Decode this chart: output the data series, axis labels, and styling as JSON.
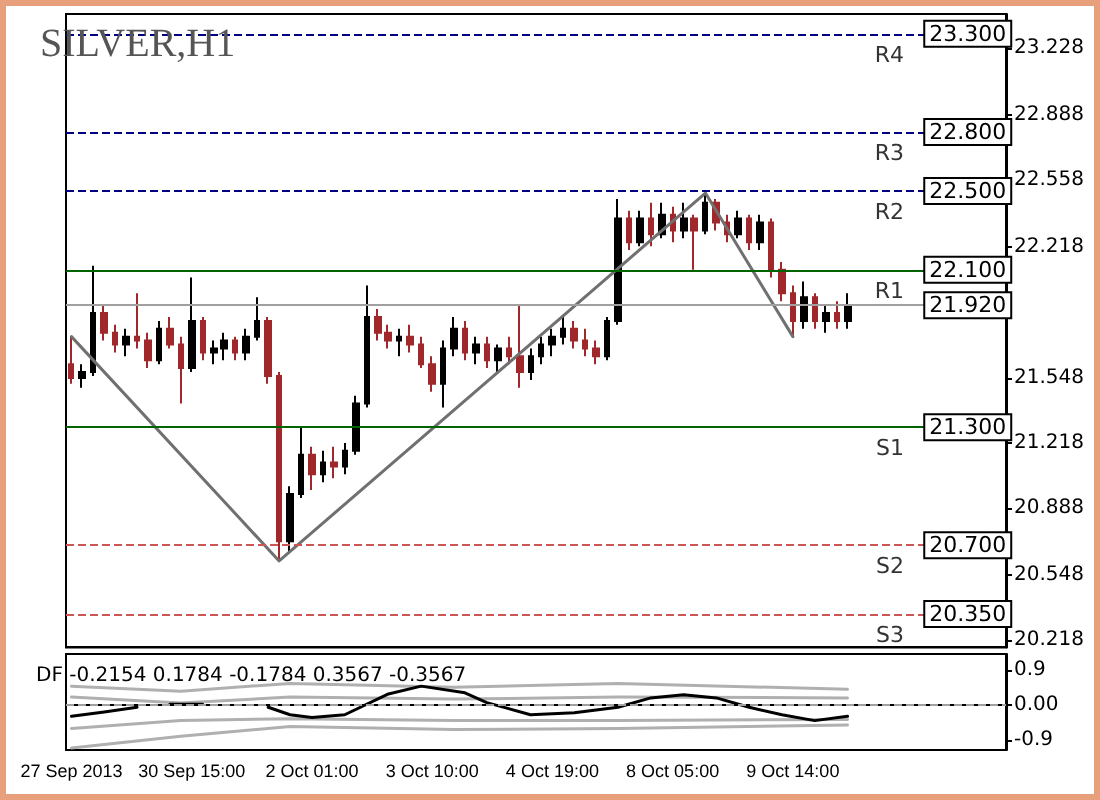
{
  "chart_data": [
    {
      "type": "candlestick",
      "title": "SILVER,H1",
      "categories": [
        null,
        null,
        null,
        null,
        null,
        null,
        null,
        null,
        null,
        null,
        null,
        null,
        null,
        null,
        null,
        null,
        null,
        null,
        null,
        null,
        null,
        null,
        null,
        null,
        null,
        null,
        null,
        null,
        null,
        null,
        null,
        null,
        null,
        null,
        null,
        null,
        null,
        null,
        null,
        null,
        null,
        null,
        null,
        null,
        null,
        null,
        null,
        null,
        null,
        null,
        null,
        null,
        null,
        null,
        null,
        null,
        null,
        null,
        null,
        null,
        null,
        null,
        null,
        null,
        null,
        null,
        null,
        null,
        null,
        null,
        null,
        null,
        null,
        null,
        null,
        null,
        null,
        null,
        null,
        null,
        null,
        null,
        null,
        null,
        null,
        null
      ],
      "ohlc": [
        [
          21.62,
          21.76,
          21.52,
          21.55
        ],
        [
          21.55,
          21.62,
          21.5,
          21.58
        ],
        [
          21.58,
          22.12,
          21.56,
          21.88
        ],
        [
          21.88,
          21.92,
          21.74,
          21.78
        ],
        [
          21.78,
          21.82,
          21.68,
          21.72
        ],
        [
          21.72,
          21.8,
          21.66,
          21.76
        ],
        [
          21.76,
          21.98,
          21.7,
          21.74
        ],
        [
          21.74,
          21.78,
          21.6,
          21.64
        ],
        [
          21.64,
          21.84,
          21.62,
          21.8
        ],
        [
          21.8,
          21.86,
          21.7,
          21.72
        ],
        [
          21.72,
          21.76,
          21.42,
          21.6
        ],
        [
          21.6,
          22.06,
          21.58,
          21.84
        ],
        [
          21.84,
          21.86,
          21.64,
          21.68
        ],
        [
          21.68,
          21.74,
          21.62,
          21.7
        ],
        [
          21.7,
          21.78,
          21.64,
          21.74
        ],
        [
          21.74,
          21.76,
          21.64,
          21.68
        ],
        [
          21.68,
          21.8,
          21.64,
          21.76
        ],
        [
          21.76,
          21.96,
          21.74,
          21.84
        ],
        [
          21.84,
          21.86,
          21.52,
          21.56
        ],
        [
          21.56,
          21.58,
          20.62,
          20.72
        ],
        [
          20.72,
          21.0,
          20.66,
          20.96
        ],
        [
          20.96,
          21.3,
          20.94,
          21.16
        ],
        [
          21.16,
          21.2,
          20.98,
          21.06
        ],
        [
          21.06,
          21.18,
          21.02,
          21.12
        ],
        [
          21.12,
          21.2,
          21.04,
          21.1
        ],
        [
          21.1,
          21.22,
          21.06,
          21.18
        ],
        [
          21.18,
          21.46,
          21.16,
          21.42
        ],
        [
          21.42,
          22.02,
          21.4,
          21.86
        ],
        [
          21.86,
          21.9,
          21.74,
          21.78
        ],
        [
          21.78,
          21.82,
          21.7,
          21.74
        ],
        [
          21.74,
          21.8,
          21.66,
          21.76
        ],
        [
          21.76,
          21.82,
          21.68,
          21.72
        ],
        [
          21.72,
          21.76,
          21.6,
          21.62
        ],
        [
          21.62,
          21.66,
          21.48,
          21.52
        ],
        [
          21.52,
          21.74,
          21.4,
          21.7
        ],
        [
          21.7,
          21.86,
          21.66,
          21.8
        ],
        [
          21.8,
          21.84,
          21.64,
          21.68
        ],
        [
          21.68,
          21.76,
          21.62,
          21.72
        ],
        [
          21.72,
          21.76,
          21.6,
          21.64
        ],
        [
          21.64,
          21.72,
          21.58,
          21.7
        ],
        [
          21.7,
          21.76,
          21.62,
          21.66
        ],
        [
          21.66,
          21.92,
          21.5,
          21.58
        ],
        [
          21.58,
          21.7,
          21.54,
          21.66
        ],
        [
          21.66,
          21.76,
          21.62,
          21.72
        ],
        [
          21.72,
          21.8,
          21.66,
          21.76
        ],
        [
          21.76,
          21.86,
          21.72,
          21.8
        ],
        [
          21.8,
          21.84,
          21.7,
          21.74
        ],
        [
          21.74,
          21.8,
          21.66,
          21.7
        ],
        [
          21.7,
          21.74,
          21.62,
          21.66
        ],
        [
          21.66,
          21.86,
          21.64,
          21.84
        ],
        [
          21.84,
          22.46,
          21.82,
          22.36
        ],
        [
          22.36,
          22.4,
          22.2,
          22.24
        ],
        [
          22.24,
          22.4,
          22.22,
          22.36
        ],
        [
          22.36,
          22.44,
          22.22,
          22.28
        ],
        [
          22.28,
          22.44,
          22.26,
          22.38
        ],
        [
          22.38,
          22.42,
          22.24,
          22.3
        ],
        [
          22.3,
          22.44,
          22.26,
          22.36
        ],
        [
          22.36,
          22.38,
          22.1,
          22.3
        ],
        [
          22.3,
          22.49,
          22.28,
          22.44
        ],
        [
          22.44,
          22.46,
          22.3,
          22.34
        ],
        [
          22.34,
          22.38,
          22.24,
          22.28
        ],
        [
          22.28,
          22.4,
          22.26,
          22.36
        ],
        [
          22.36,
          22.38,
          22.2,
          22.24
        ],
        [
          22.24,
          22.38,
          22.2,
          22.34
        ],
        [
          22.34,
          22.36,
          22.06,
          22.1
        ],
        [
          22.1,
          22.14,
          21.94,
          21.98
        ],
        [
          21.98,
          22.02,
          21.76,
          21.84
        ],
        [
          21.84,
          22.04,
          21.8,
          21.96
        ],
        [
          21.96,
          21.98,
          21.8,
          21.84
        ],
        [
          21.84,
          21.92,
          21.78,
          21.88
        ],
        [
          21.88,
          21.94,
          21.8,
          21.84
        ],
        [
          21.84,
          21.98,
          21.8,
          21.92
        ],
        null,
        null,
        null,
        null,
        null,
        null,
        null,
        null,
        null,
        null,
        null,
        null,
        null,
        null
      ],
      "colors": [
        "#a0282a",
        "#000000",
        "#000000",
        "#a0282a",
        "#a0282a",
        "#000000",
        "#a0282a",
        "#a0282a",
        "#000000",
        "#a0282a",
        "#a0282a",
        "#000000",
        "#a0282a",
        "#000000",
        "#000000",
        "#a0282a",
        "#000000",
        "#000000",
        "#a0282a",
        "#a0282a",
        "#000000",
        "#000000",
        "#a0282a",
        "#000000",
        "#a0282a",
        "#000000",
        "#000000",
        "#000000",
        "#a0282a",
        "#a0282a",
        "#000000",
        "#a0282a",
        "#a0282a",
        "#a0282a",
        "#000000",
        "#000000",
        "#a0282a",
        "#000000",
        "#a0282a",
        "#000000",
        "#a0282a",
        "#a0282a",
        "#000000",
        "#000000",
        "#000000",
        "#000000",
        "#a0282a",
        "#a0282a",
        "#a0282a",
        "#000000",
        "#000000",
        "#a0282a",
        "#000000",
        "#a0282a",
        "#000000",
        "#a0282a",
        "#000000",
        "#a0282a",
        "#000000",
        "#a0282a",
        "#a0282a",
        "#000000",
        "#a0282a",
        "#000000",
        "#a0282a",
        "#a0282a",
        "#a0282a",
        "#000000",
        "#a0282a",
        "#000000",
        "#a0282a",
        "#000000",
        null,
        null,
        null,
        null,
        null,
        null,
        null,
        null,
        null,
        null,
        null,
        null,
        null,
        null
      ],
      "series": [
        {
          "type": "line",
          "color": "#707070",
          "values": [
            21.76,
            null,
            null,
            null,
            null,
            null,
            null,
            null,
            null,
            null,
            null,
            null,
            null,
            null,
            null,
            null,
            null,
            null,
            null,
            20.62,
            null,
            null,
            null,
            null,
            null,
            null,
            null,
            null,
            null,
            null,
            null,
            null,
            null,
            null,
            null,
            null,
            null,
            null,
            null,
            null,
            null,
            null,
            null,
            null,
            null,
            null,
            null,
            null,
            null,
            null,
            null,
            null,
            null,
            null,
            null,
            null,
            null,
            null,
            22.49,
            null,
            null,
            null,
            null,
            null,
            null,
            null,
            21.76,
            null,
            null,
            null,
            null,
            null,
            null,
            null,
            null,
            null,
            null,
            null,
            null,
            null,
            null,
            null,
            null,
            null,
            null,
            null
          ]
        }
      ],
      "ylim": [
        20.18,
        23.4
      ],
      "yticks": [
        20.218,
        20.548,
        20.888,
        21.218,
        21.548,
        22.218,
        22.558,
        22.888,
        23.228
      ],
      "tick_labels": "y",
      "ref_lines": [
        {
          "axis": "y",
          "value": 23.3,
          "label": "R4",
          "color": "#000080",
          "line_style": "dashed"
        },
        {
          "axis": "y",
          "value": 22.8,
          "label": "R3",
          "color": "#000080",
          "line_style": "dashed"
        },
        {
          "axis": "y",
          "value": 22.5,
          "label": "R2",
          "color": "#000080",
          "line_style": "dashed"
        },
        {
          "axis": "y",
          "value": 22.1,
          "label": "R1",
          "color": "#006400",
          "line_style": "solid"
        },
        {
          "axis": "y",
          "value": 21.92,
          "label": null,
          "color": "#a0a0a0",
          "line_style": "solid"
        },
        {
          "axis": "y",
          "value": 21.3,
          "label": "S1",
          "color": "#006400",
          "line_style": "solid"
        },
        {
          "axis": "y",
          "value": 20.7,
          "label": "S2",
          "color": "#cc5555",
          "line_style": "dashed"
        },
        {
          "axis": "y",
          "value": 20.35,
          "label": "S3",
          "color": "#cc5555",
          "line_style": "dashed"
        }
      ],
      "annotations": [
        {
          "text": "23.300",
          "y": 23.3
        },
        {
          "text": "22.800",
          "y": 22.8
        },
        {
          "text": "22.500",
          "y": 22.5
        },
        {
          "text": "22.100",
          "y": 22.1
        },
        {
          "text": "21.920",
          "y": 21.92
        },
        {
          "text": "21.300",
          "y": 21.3
        },
        {
          "text": "20.700",
          "y": 20.7
        },
        {
          "text": "20.350",
          "y": 20.35
        }
      ]
    },
    {
      "type": "line",
      "title": "DF -0.2154 0.1784 -0.1784 0.3567 -0.3567",
      "categories": [
        "27 Sep 2013",
        null,
        null,
        null,
        null,
        null,
        null,
        null,
        null,
        null,
        null,
        "30 Sep 15:00",
        null,
        null,
        null,
        null,
        null,
        null,
        null,
        null,
        null,
        null,
        "2 Oct 01:00",
        null,
        null,
        null,
        null,
        null,
        null,
        null,
        null,
        null,
        null,
        "3 Oct 10:00",
        null,
        null,
        null,
        null,
        null,
        null,
        null,
        null,
        null,
        null,
        "4 Oct 19:00",
        null,
        null,
        null,
        null,
        null,
        null,
        null,
        null,
        null,
        null,
        "8 Oct 05:00",
        null,
        null,
        null,
        null,
        null,
        null,
        null,
        null,
        null,
        null,
        "9 Oct 14:00",
        null,
        null,
        null,
        null,
        null,
        null,
        null,
        null,
        null,
        null,
        null,
        null,
        null,
        null,
        null,
        null,
        null,
        null,
        null
      ],
      "series": [
        {
          "color": "#b0b0b0",
          "values": [
            0.48,
            null,
            null,
            null,
            null,
            null,
            null,
            null,
            null,
            null,
            0.35,
            null,
            null,
            null,
            null,
            null,
            null,
            null,
            null,
            null,
            0.55,
            null,
            null,
            null,
            null,
            null,
            null,
            null,
            null,
            null,
            null,
            null,
            null,
            null,
            null,
            0.45,
            null,
            null,
            null,
            null,
            null,
            null,
            null,
            null,
            null,
            null,
            null,
            null,
            null,
            null,
            0.55,
            null,
            null,
            null,
            null,
            null,
            null,
            null,
            null,
            null,
            null,
            null,
            null,
            null,
            null,
            null,
            null,
            null,
            null,
            null,
            null,
            0.4,
            null,
            null,
            null,
            null,
            null,
            null,
            null,
            null,
            null,
            null,
            null,
            null,
            null,
            null
          ]
        },
        {
          "color": "#b0b0b0",
          "values": [
            0.2,
            null,
            null,
            null,
            null,
            null,
            null,
            null,
            null,
            null,
            0.05,
            null,
            null,
            null,
            null,
            null,
            null,
            null,
            null,
            null,
            0.2,
            null,
            null,
            null,
            null,
            null,
            null,
            null,
            null,
            null,
            null,
            null,
            null,
            null,
            null,
            0.15,
            null,
            null,
            null,
            null,
            null,
            null,
            null,
            null,
            null,
            null,
            null,
            null,
            null,
            null,
            0.2,
            null,
            null,
            null,
            null,
            null,
            null,
            null,
            null,
            null,
            null,
            null,
            null,
            null,
            null,
            null,
            null,
            null,
            null,
            null,
            null,
            0.18,
            null,
            null,
            null,
            null,
            null,
            null,
            null,
            null,
            null,
            null,
            null,
            null,
            null,
            null
          ]
        },
        {
          "color": "#b0b0b0",
          "values": [
            -0.6,
            null,
            null,
            null,
            null,
            null,
            null,
            null,
            null,
            null,
            -0.4,
            null,
            null,
            null,
            null,
            null,
            null,
            null,
            null,
            null,
            -0.35,
            null,
            null,
            null,
            null,
            null,
            null,
            null,
            null,
            null,
            null,
            null,
            null,
            null,
            null,
            -0.4,
            null,
            null,
            null,
            null,
            null,
            null,
            null,
            null,
            null,
            null,
            null,
            null,
            null,
            null,
            -0.4,
            null,
            null,
            null,
            null,
            null,
            null,
            null,
            null,
            null,
            null,
            null,
            null,
            null,
            null,
            null,
            null,
            null,
            null,
            null,
            null,
            -0.37,
            null,
            null,
            null,
            null,
            null,
            null,
            null,
            null,
            null,
            null,
            null,
            null,
            null,
            null
          ]
        },
        {
          "color": "#b0b0b0",
          "values": [
            -1.1,
            null,
            null,
            null,
            null,
            null,
            null,
            null,
            null,
            null,
            -0.8,
            null,
            null,
            null,
            null,
            null,
            null,
            null,
            null,
            null,
            -0.55,
            null,
            null,
            null,
            null,
            null,
            null,
            null,
            null,
            null,
            null,
            null,
            null,
            null,
            null,
            -0.63,
            null,
            null,
            null,
            null,
            null,
            null,
            null,
            null,
            null,
            null,
            null,
            null,
            null,
            null,
            -0.6,
            null,
            null,
            null,
            null,
            null,
            null,
            null,
            null,
            null,
            null,
            null,
            null,
            null,
            null,
            null,
            null,
            null,
            null,
            null,
            null,
            -0.51,
            null,
            null,
            null,
            null,
            null,
            null,
            null,
            null,
            null,
            null,
            null,
            null,
            null,
            null
          ]
        },
        {
          "color": "#000000",
          "values": [
            -0.29,
            null,
            null,
            -0.18,
            null,
            null,
            -0.06,
            null,
            null,
            null,
            null,
            null,
            null,
            null,
            null,
            null,
            null,
            null,
            null,
            null,
            null,
            null,
            null,
            null,
            null,
            null,
            null,
            null,
            null,
            null,
            null,
            null,
            null,
            null,
            null,
            null,
            null,
            null,
            null,
            null,
            null,
            null,
            null,
            null,
            null,
            null,
            null,
            null,
            null,
            null,
            null,
            null,
            null,
            null,
            null,
            null,
            null,
            null,
            null,
            null,
            null,
            null,
            null,
            null,
            null,
            null,
            null,
            null,
            null,
            null,
            null,
            null,
            null,
            null,
            null,
            null,
            null,
            null,
            null,
            null,
            null,
            null,
            null,
            null,
            null,
            null
          ]
        },
        {
          "color": "#000000",
          "values": [
            null,
            null,
            null,
            null,
            null,
            null,
            null,
            null,
            null,
            0.02,
            null,
            null,
            0.02,
            null,
            null,
            null,
            null,
            null,
            null,
            null,
            null,
            null,
            null,
            null,
            null,
            null,
            null,
            null,
            null,
            null,
            null,
            null,
            null,
            null,
            null,
            null,
            null,
            null,
            null,
            null,
            null,
            null,
            null,
            null,
            null,
            null,
            null,
            null,
            null,
            null,
            null,
            null,
            null,
            null,
            null,
            null,
            null,
            null,
            null,
            null,
            null,
            null,
            null,
            null,
            null,
            null,
            null,
            null,
            null,
            null,
            null,
            null,
            null,
            null,
            null,
            null,
            null,
            null,
            null,
            null,
            null,
            null,
            null,
            null,
            null,
            null
          ]
        },
        {
          "color": "#000000",
          "values": [
            null,
            null,
            null,
            null,
            null,
            null,
            null,
            null,
            null,
            null,
            null,
            null,
            null,
            null,
            null,
            null,
            null,
            null,
            -0.06,
            null,
            -0.25,
            null,
            -0.32,
            null,
            null,
            -0.25,
            null,
            null,
            null,
            0.28,
            null,
            null,
            0.48,
            null,
            null,
            null,
            0.31,
            null,
            0.06,
            null,
            null,
            null,
            -0.25,
            null,
            null,
            null,
            -0.2,
            null,
            null,
            null,
            -0.06,
            null,
            null,
            0.18,
            null,
            null,
            0.26,
            null,
            null,
            0.18,
            null,
            null,
            -0.06,
            null,
            null,
            -0.25,
            null,
            null,
            -0.4,
            null,
            null,
            -0.29,
            null,
            null,
            null,
            null,
            null,
            null,
            null,
            null,
            null,
            null,
            null,
            null,
            null,
            null
          ]
        }
      ],
      "ylim": [
        -1.15,
        1.3
      ],
      "yticks": [
        {
          "value": -0.9,
          "label": "-0.9"
        },
        {
          "value": 0,
          "label": "0.00"
        },
        {
          "value": 0.9,
          "label": "0.9"
        }
      ],
      "ref_lines": [
        {
          "axis": "y",
          "value": 0,
          "label": null,
          "color": "#a0a0a0",
          "line_style": "dashed"
        }
      ]
    }
  ]
}
